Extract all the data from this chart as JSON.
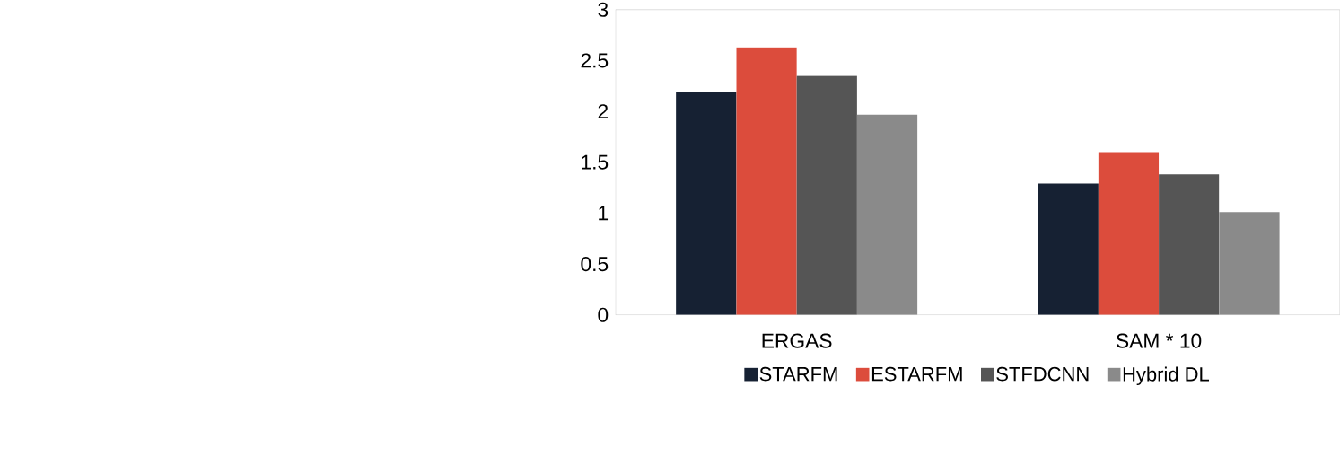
{
  "chart_data": {
    "type": "bar",
    "categories": [
      "ERGAS",
      "SAM * 10"
    ],
    "series": [
      {
        "name": "STARFM",
        "color": "#162133",
        "values": [
          2.19,
          1.29
        ]
      },
      {
        "name": "ESTARFM",
        "color": "#dc4c3c",
        "values": [
          2.63,
          1.6
        ]
      },
      {
        "name": "STFDCNN",
        "color": "#555555",
        "values": [
          2.35,
          1.38
        ]
      },
      {
        "name": "Hybrid DL",
        "color": "#8a8a8a",
        "values": [
          1.97,
          1.01
        ]
      }
    ],
    "ylim": [
      0,
      3
    ],
    "yticks": [
      0,
      0.5,
      1,
      1.5,
      2,
      2.5,
      3
    ],
    "legend": "bottom"
  }
}
